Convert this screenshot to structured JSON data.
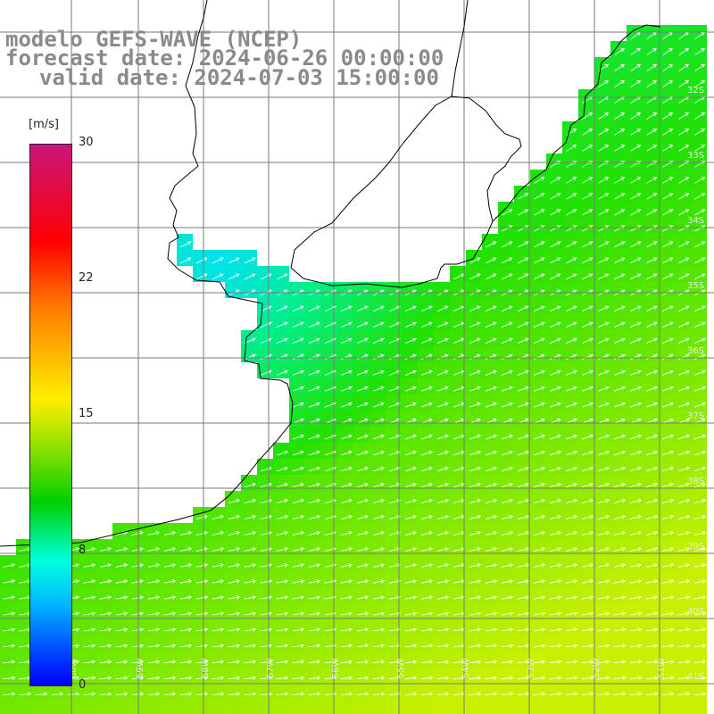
{
  "title": {
    "model": "modelo GEFS-WAVE (NCEP)",
    "forecast": "forecast date: 2024-06-26 00:00:00",
    "valid": "valid date: 2024-07-03 15:00:00"
  },
  "colorbar": {
    "unit": "[m/s]",
    "ticks": [
      "30",
      "22",
      "15",
      "8",
      "0"
    ],
    "colors": [
      "#c8167c",
      "#ff0000",
      "#ff7a00",
      "#ffee00",
      "#8fe000",
      "#00d000",
      "#00ffe0",
      "#00b6ff",
      "#0050ff",
      "#0000ff"
    ]
  },
  "map": {
    "lat_labels": [
      "32S",
      "33S",
      "34S",
      "35S",
      "36S",
      "37S",
      "38S",
      "39S",
      "40S",
      "41S"
    ],
    "lon_labels": [
      "60W",
      "59W",
      "58W",
      "57W",
      "56W",
      "55W",
      "54W",
      "53W",
      "52W",
      "51W"
    ],
    "land_color": "#ffffff",
    "coast_color": "#000000",
    "grid_color": "#7a7a7a",
    "arrow_color": "#ffffff"
  }
}
